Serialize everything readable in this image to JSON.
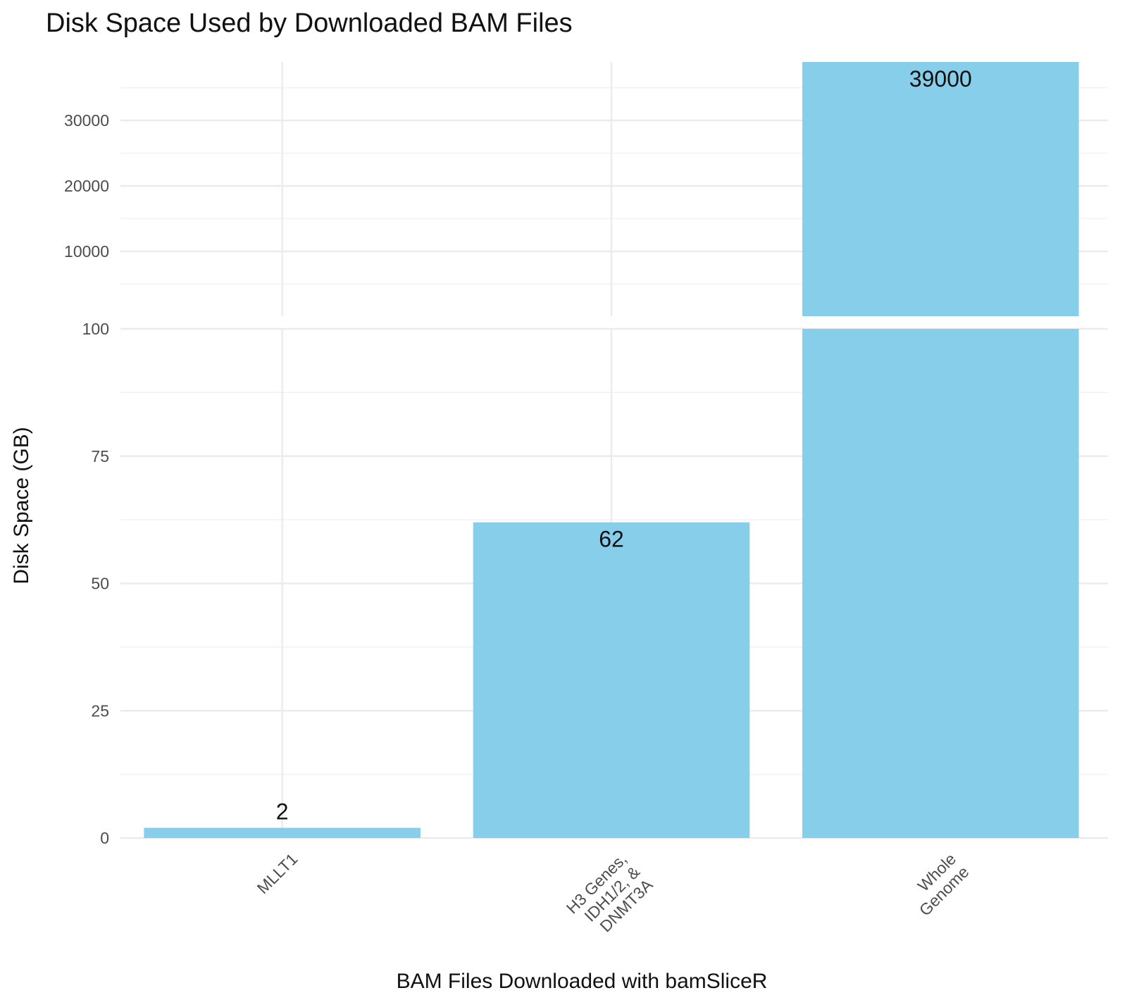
{
  "chart_data": {
    "type": "bar",
    "title": "Disk Space Used by Downloaded BAM Files",
    "xlabel": "BAM Files Downloaded with bamSliceR",
    "ylabel": "Disk Space (GB)",
    "categories": [
      "MLLT1",
      "H3 Genes, IDH1/2, & DNMT3A",
      "Whole Genome"
    ],
    "category_lines": [
      [
        "MLLT1"
      ],
      [
        "H3 Genes,",
        "IDH1/2, &",
        "DNMT3A"
      ],
      [
        "Whole",
        "Genome"
      ]
    ],
    "values": [
      2,
      62,
      39000
    ],
    "data_labels": [
      "2",
      "62",
      "39000"
    ],
    "bar_color": "#87CEEB",
    "y_axis_break": true,
    "panels": [
      {
        "name": "lower",
        "ylim": [
          0,
          100
        ],
        "yticks": [
          0,
          25,
          50,
          75,
          100
        ]
      },
      {
        "name": "upper",
        "ylim": [
          0,
          39000
        ],
        "yticks": [
          10000,
          20000,
          30000
        ]
      }
    ],
    "grid": true,
    "legend": "none"
  }
}
